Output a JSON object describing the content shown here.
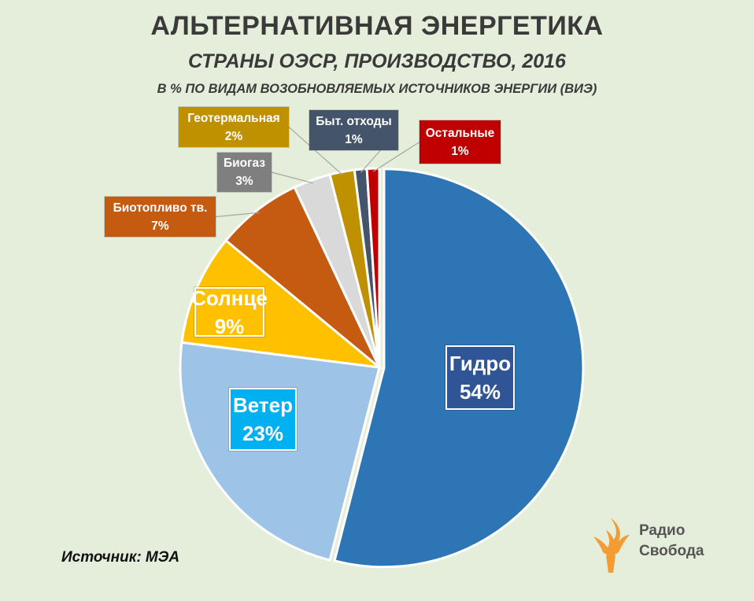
{
  "chart_data": {
    "type": "pie",
    "title": "АЛЬТЕРНАТИВНАЯ ЭНЕРГЕТИКА",
    "subtitle": "СТРАНЫ ОЭСР, ПРОИЗВОДСТВО, 2016",
    "note": "В % ПО ВИДАМ ВОЗОБНОВЛЯЕМЫХ ИСТОЧНИКОВ ЭНЕРГИИ (ВИЭ)",
    "slices": [
      {
        "label": "Гидро",
        "value": 54,
        "value_text": "54%",
        "color": "#2e75b6"
      },
      {
        "label": "Ветер",
        "value": 23,
        "value_text": "23%",
        "color": "#9dc3e6"
      },
      {
        "label": "Солнце",
        "value": 9,
        "value_text": "9%",
        "color": "#ffc000"
      },
      {
        "label": "Биотопливо тв.",
        "value": 7,
        "value_text": "7%",
        "color": "#c55a11"
      },
      {
        "label": "Биогаз",
        "value": 3,
        "value_text": "3%",
        "color": "#d9d9d9"
      },
      {
        "label": "Геотермальная",
        "value": 2,
        "value_text": "2%",
        "color": "#bf9000"
      },
      {
        "label": "Быт. отходы",
        "value": 1,
        "value_text": "1%",
        "color": "#44546a"
      },
      {
        "label": "Остальные",
        "value": 1,
        "value_text": "1%",
        "color": "#c00000"
      }
    ]
  },
  "label_box_colors": {
    "Гидро": "#2f5597",
    "Ветер": "#00b0f0",
    "Солнце": "#ffc000",
    "Биотопливо тв.": "#c55a11",
    "Биогаз": "#7f7f7f",
    "Геотермальная": "#bf9000",
    "Быт. отходы": "#44546a",
    "Остальные": "#c00000"
  },
  "source": "Источник: МЭА",
  "logo": {
    "line1": "Радио",
    "line2": "Свобода",
    "icon": "torch-icon",
    "color": "#f39c33"
  }
}
